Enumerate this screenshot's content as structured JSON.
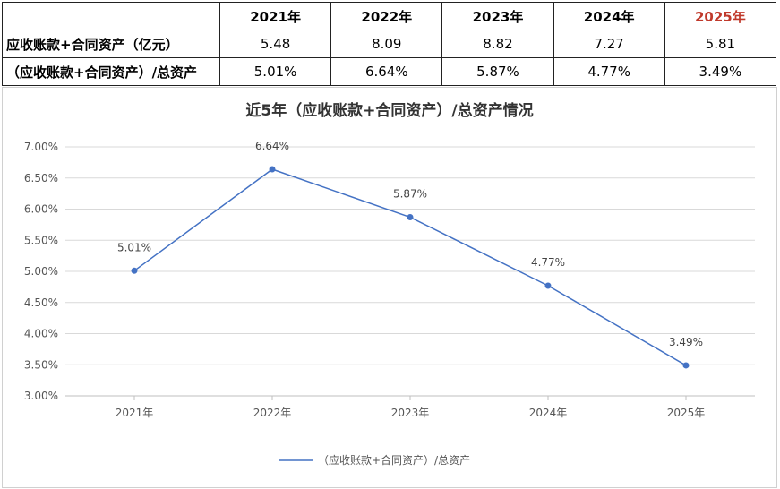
{
  "table": {
    "years": [
      "2021年",
      "2022年",
      "2023年",
      "2024年",
      "2025年"
    ],
    "highlight_color": "#c0392b",
    "rows": [
      {
        "label": "应收账款+合同资产（亿元）",
        "values": [
          "5.48",
          "8.09",
          "8.82",
          "7.27",
          "5.81"
        ]
      },
      {
        "label": "（应收账款+合同资产）/总资产",
        "values": [
          "5.01%",
          "6.64%",
          "5.87%",
          "4.77%",
          "3.49%"
        ]
      }
    ]
  },
  "chart_data": {
    "type": "line",
    "title": "近5年（应收账款+合同资产）/总资产情况",
    "categories": [
      "2021年",
      "2022年",
      "2023年",
      "2024年",
      "2025年"
    ],
    "series": [
      {
        "name": "（应收账款+合同资产）/总资产",
        "values": [
          5.01,
          6.64,
          5.87,
          4.77,
          3.49
        ],
        "labels": [
          "5.01%",
          "6.64%",
          "5.87%",
          "4.77%",
          "3.49%"
        ],
        "color": "#4472c4"
      }
    ],
    "ylim": [
      3.0,
      7.0
    ],
    "yticks": [
      "3.00%",
      "3.50%",
      "4.00%",
      "4.50%",
      "5.00%",
      "5.50%",
      "6.00%",
      "6.50%",
      "7.00%"
    ],
    "grid": true,
    "legend_position": "bottom"
  }
}
